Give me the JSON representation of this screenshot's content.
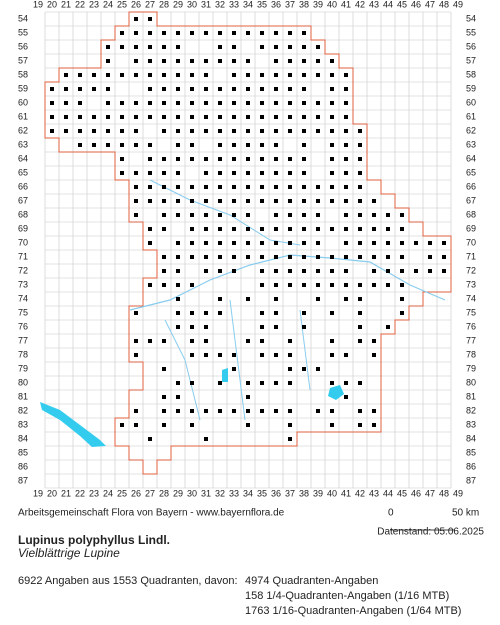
{
  "map": {
    "x_labels": [
      19,
      20,
      21,
      22,
      23,
      24,
      25,
      26,
      27,
      28,
      29,
      30,
      31,
      32,
      33,
      34,
      35,
      36,
      37,
      38,
      39,
      40,
      41,
      42,
      43,
      44,
      45,
      46,
      47,
      48,
      49
    ],
    "y_labels": [
      54,
      55,
      56,
      57,
      58,
      59,
      60,
      61,
      62,
      63,
      64,
      65,
      66,
      67,
      68,
      69,
      70,
      71,
      72,
      73,
      74,
      75,
      76,
      77,
      78,
      79,
      80,
      81,
      82,
      83,
      84,
      85,
      86,
      87
    ],
    "source": "Arbeitsgemeinschaft Flora von Bayern - www.bayernflora.de",
    "scale": {
      "start": "0",
      "end": "50 km"
    },
    "date": "Datenstand: 05.06.2025",
    "species": {
      "scientific": "Lupinus polyphyllus Lindl.",
      "common": "Vielblättrige Lupine"
    },
    "stats": {
      "summary": "6922 Angaben aus 1553 Quadranten, davon:",
      "items": [
        "4974 Quadranten-Angaben",
        "158 1/4-Quadranten-Angaben (1/16 MTB)",
        "1763 1/16-Quadranten-Angaben (1/64 MTB)"
      ]
    }
  }
}
